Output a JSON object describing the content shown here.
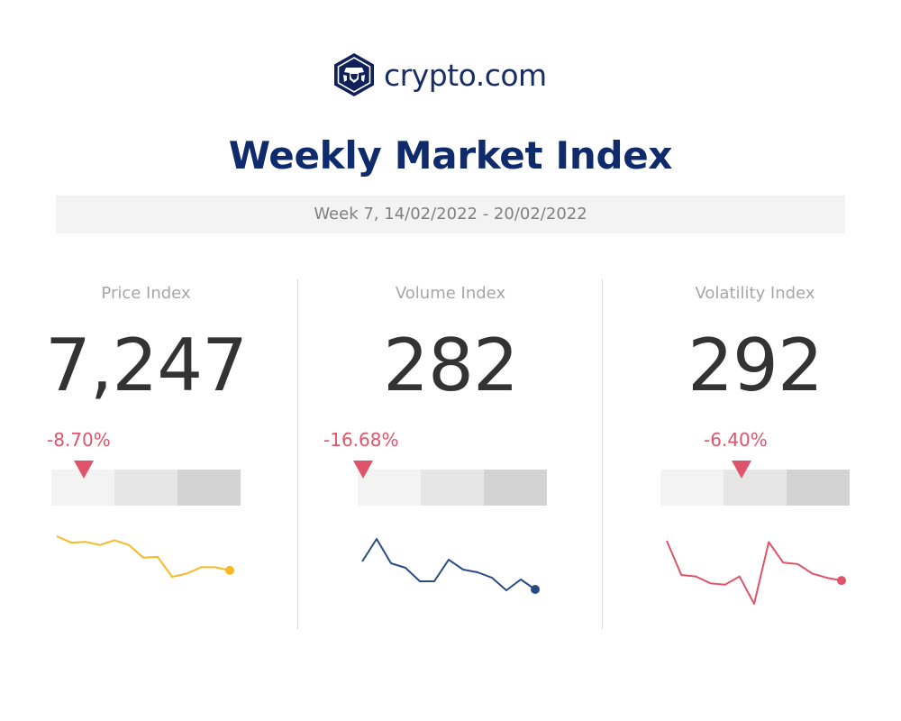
{
  "brand": {
    "name": "crypto.com",
    "color": "#0f2b6b"
  },
  "header": {
    "title": "Weekly Market Index",
    "week": "Week 7, 14/02/2022 - 20/02/2022"
  },
  "colors": {
    "negative": "#e0546b",
    "label": "#a6a6a6",
    "value": "#333333"
  },
  "chart_data": [
    {
      "type": "line",
      "title": "Price Index",
      "value": "7,247",
      "change": "-8.70%",
      "level_fraction": 0.17,
      "color": "#f7b924",
      "values": [
        7950,
        7870,
        7880,
        7840,
        7900,
        7840,
        7680,
        7690,
        7440,
        7480,
        7560,
        7560,
        7520
      ]
    },
    {
      "type": "line",
      "title": "Volume Index",
      "value": "282",
      "change": "-16.68%",
      "level_fraction": 0.03,
      "color": "#2a4a83",
      "values": [
        320,
        345,
        318,
        313,
        298,
        298,
        322,
        311,
        308,
        302,
        288,
        300,
        289
      ]
    },
    {
      "type": "line",
      "title": "Volatility Index",
      "value": "292",
      "change": "-6.40%",
      "level_fraction": 0.43,
      "color": "#e0546b",
      "values": [
        330,
        305,
        304,
        299,
        298,
        304,
        284,
        329,
        314,
        313,
        306,
        303,
        301
      ]
    }
  ]
}
